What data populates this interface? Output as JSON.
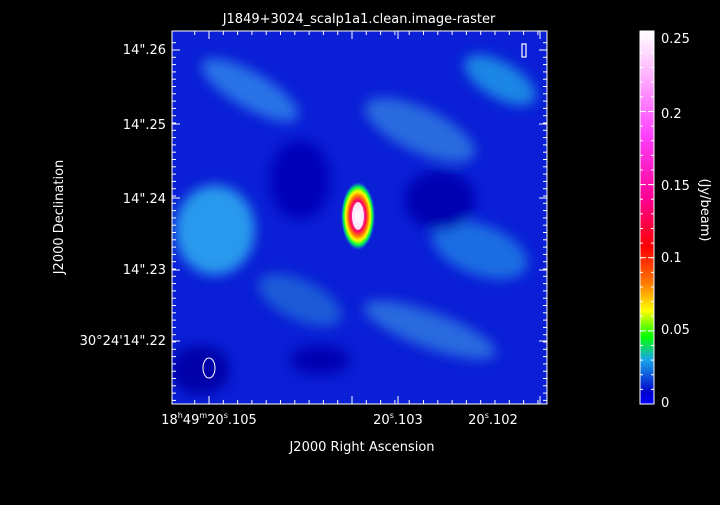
{
  "title": "J1849+3024_scalp1a1.clean.image-raster",
  "xaxis": {
    "label": "J2000 Right Ascension",
    "ticks": [
      {
        "label": "18h49m20s.105",
        "pos": 0.1
      },
      {
        "label": "20s.103",
        "pos": 0.59
      },
      {
        "label": "20s.102",
        "pos": 0.84
      }
    ]
  },
  "yaxis": {
    "label": "J2000 Declination",
    "ticks": [
      {
        "label": "14\".26"
      },
      {
        "label": "14\".25"
      },
      {
        "label": "14\".24"
      },
      {
        "label": "14\".23"
      },
      {
        "label": "30°24'14\".22"
      }
    ]
  },
  "colorbar": {
    "label": "(Jy/beam)",
    "ticks": [
      "0.25",
      "0.2",
      "0.15",
      "0.1",
      "0.05",
      "0"
    ],
    "values": [
      0.25,
      0.2,
      0.15,
      0.1,
      0.05,
      0
    ],
    "range": [
      0,
      0.255
    ]
  },
  "beam_icon": "beam-ellipse-icon",
  "marker_icon": "marker-bar-icon"
}
